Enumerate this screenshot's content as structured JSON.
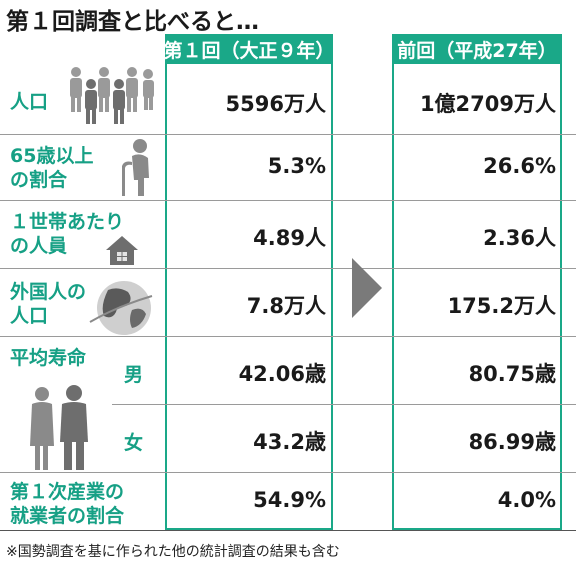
{
  "title": "第１回調査と比べると…",
  "columns": {
    "first": "第１回（大正９年）",
    "previous": "前回（平成27年）"
  },
  "rows": [
    {
      "label": [
        "人口"
      ],
      "first": "5596万人",
      "previous": "1億2709万人",
      "icon": "people-group-icon"
    },
    {
      "label": [
        "65歳以上",
        "の割合"
      ],
      "first": "5.3%",
      "previous": "26.6%",
      "icon": "elderly-person-icon"
    },
    {
      "label": [
        "１世帯あたり",
        "の人員"
      ],
      "first": "4.89人",
      "previous": "2.36人",
      "icon": "house-icon"
    },
    {
      "label": [
        "外国人の",
        "人口"
      ],
      "first": "7.8万人",
      "previous": "175.2万人",
      "icon": "globe-icon"
    },
    {
      "label": [
        "平均寿命"
      ],
      "sex": "男",
      "first": "42.06歳",
      "previous": "80.75歳",
      "icon": "couple-icon"
    },
    {
      "sex": "女",
      "first": "43.2歳",
      "previous": "86.99歳"
    },
    {
      "label": [
        "第１次産業の",
        "就業者の割合"
      ],
      "first": "54.9%",
      "previous": "4.0%"
    }
  ],
  "footnote": "※国勢調査を基に作られた他の統計調査の結果も含む",
  "colors": {
    "accent": "#1aa888",
    "band": "#e4e4e4",
    "arrow": "#7a7a7a"
  }
}
